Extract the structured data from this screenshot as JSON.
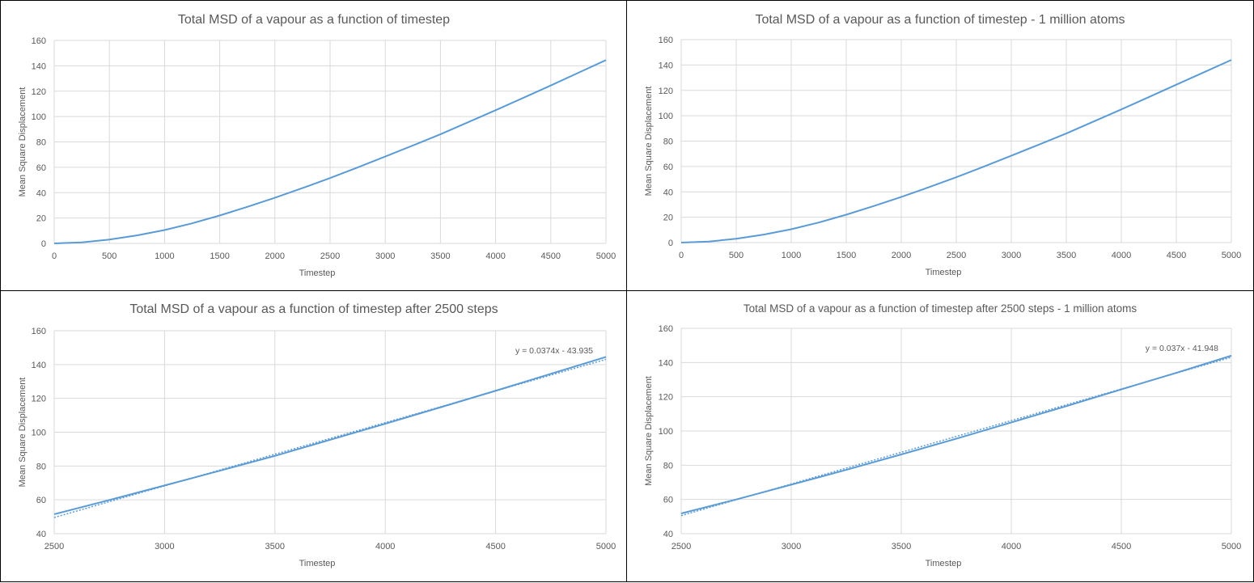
{
  "chart_data": [
    {
      "type": "line",
      "title": "Total MSD of a vapour as a function of timestep",
      "xlabel": "Timestep",
      "ylabel": "Mean Square Displacement",
      "xlim": [
        0,
        5000
      ],
      "xticks": [
        0,
        500,
        1000,
        1500,
        2000,
        2500,
        3000,
        3500,
        4000,
        4500,
        5000
      ],
      "ylim": [
        0,
        160
      ],
      "yticks": [
        0,
        20,
        40,
        60,
        80,
        100,
        120,
        140,
        160
      ],
      "grid": true,
      "series": [
        {
          "name": "MSD",
          "color": "#5b9bd5",
          "x": [
            0,
            250,
            500,
            750,
            1000,
            1250,
            1500,
            1750,
            2000,
            2250,
            2500,
            2750,
            3000,
            3250,
            3500,
            3750,
            4000,
            4250,
            4500,
            4750,
            5000
          ],
          "y": [
            0,
            0.8,
            3,
            6.3,
            10.5,
            15.8,
            22,
            28.8,
            36,
            43.6,
            51.5,
            59.9,
            68.5,
            77.2,
            86,
            95.5,
            105,
            114.7,
            124.5,
            134.5,
            144.5
          ]
        }
      ]
    },
    {
      "type": "line",
      "title": "Total MSD of a vapour as a function of timestep - 1 million atoms",
      "xlabel": "Timestep",
      "ylabel": "Mean Square Displacement",
      "xlim": [
        0,
        5000
      ],
      "xticks": [
        0,
        500,
        1000,
        1500,
        2000,
        2500,
        3000,
        3500,
        4000,
        4500,
        5000
      ],
      "ylim": [
        0,
        160
      ],
      "yticks": [
        0,
        20,
        40,
        60,
        80,
        100,
        120,
        140,
        160
      ],
      "grid": true,
      "series": [
        {
          "name": "MSD",
          "color": "#5b9bd5",
          "x": [
            0,
            250,
            500,
            750,
            1000,
            1250,
            1500,
            1750,
            2000,
            2250,
            2500,
            2750,
            3000,
            3250,
            3500,
            3750,
            4000,
            4250,
            4500,
            4750,
            5000
          ],
          "y": [
            0,
            0.8,
            3,
            6.3,
            10.5,
            15.8,
            22,
            28.8,
            36,
            43.6,
            51.5,
            59.9,
            68.5,
            77.2,
            86,
            95.5,
            105,
            114.7,
            124.5,
            134.2,
            144
          ]
        }
      ]
    },
    {
      "type": "line",
      "title": "Total MSD of a vapour as a function of timestep after 2500 steps",
      "xlabel": "Timestep",
      "ylabel": "Mean Square Displacement",
      "xlim": [
        2500,
        5000
      ],
      "xticks": [
        2500,
        3000,
        3500,
        4000,
        4500,
        5000
      ],
      "ylim": [
        40,
        160
      ],
      "yticks": [
        40,
        60,
        80,
        100,
        120,
        140,
        160
      ],
      "grid": true,
      "series": [
        {
          "name": "MSD",
          "color": "#5b9bd5",
          "x": [
            2500,
            2750,
            3000,
            3250,
            3500,
            3750,
            4000,
            4250,
            4500,
            4750,
            5000
          ],
          "y": [
            51.5,
            59.9,
            68.5,
            77.2,
            86,
            95.5,
            105,
            114.7,
            124.5,
            134.5,
            144.5
          ]
        }
      ],
      "trendline": {
        "slope": 0.0374,
        "intercept": -43.935,
        "label": "y = 0.0374x - 43.935",
        "color": "#5b9bd5"
      }
    },
    {
      "type": "line",
      "title": "Total MSD of a vapour as a function of timestep after 2500 steps - 1 million atoms",
      "xlabel": "Timestep",
      "ylabel": "Mean Square Displacement",
      "xlim": [
        2500,
        5000
      ],
      "xticks": [
        2500,
        3000,
        3500,
        4000,
        4500,
        5000
      ],
      "ylim": [
        40,
        160
      ],
      "yticks": [
        40,
        60,
        80,
        100,
        120,
        140,
        160
      ],
      "grid": true,
      "series": [
        {
          "name": "MSD",
          "color": "#5b9bd5",
          "x": [
            2500,
            2750,
            3000,
            3250,
            3500,
            3750,
            4000,
            4250,
            4500,
            4750,
            5000
          ],
          "y": [
            51.8,
            60,
            68.6,
            77.3,
            86.3,
            95.5,
            105,
            114.5,
            124.3,
            134,
            144
          ]
        }
      ],
      "trendline": {
        "slope": 0.037,
        "intercept": -41.948,
        "label": "y = 0.037x - 41.948",
        "color": "#5b9bd5"
      }
    }
  ]
}
